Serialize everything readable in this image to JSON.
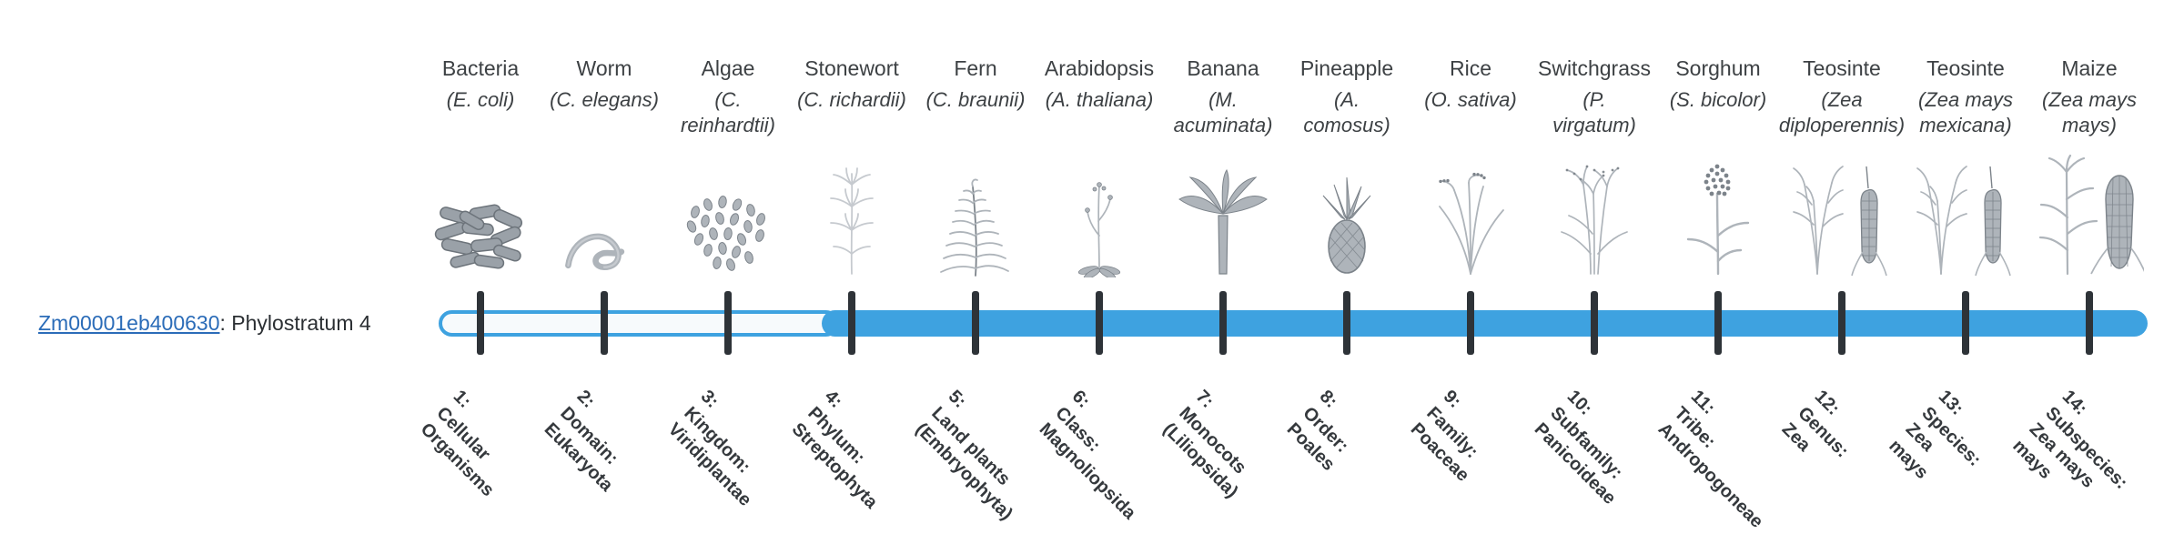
{
  "gene": {
    "id": "Zm00001eb400630",
    "suffix": ": Phylostratum 4",
    "phylostratum": 4
  },
  "colors": {
    "bar_fill": "#3ea2e0",
    "tick": "#2e3338",
    "link": "#2b6cb8",
    "text": "#3d4144",
    "label_text": "#35393d",
    "art_fill": "#aeb4ba",
    "art_stroke": "#7c838a",
    "art_light": "#c6cacf",
    "art_dark_fill": "#9aa1a8",
    "art_dark_stroke": "#6d747b"
  },
  "timeline": {
    "filled_from_stratum": 4,
    "total_strata": 14
  },
  "strata": [
    {
      "number": 1,
      "organism": "Bacteria",
      "scientific": "(E. coli)",
      "icon": "bacteria-illustration",
      "label": "1:\nCellular\nOrganisms"
    },
    {
      "number": 2,
      "organism": "Worm",
      "scientific": "(C. elegans)",
      "icon": "worm-illustration",
      "label": "2:\nDomain:\nEukaryota"
    },
    {
      "number": 3,
      "organism": "Algae",
      "scientific": "(C.\nreinhardtii)",
      "icon": "algae-illustration",
      "label": "3:\nKingdom:\nViridiplantae"
    },
    {
      "number": 4,
      "organism": "Stonewort",
      "scientific": "(C. richardii)",
      "icon": "stonewort-illustration",
      "label": "4:\nPhylum:\nStreptophyta"
    },
    {
      "number": 5,
      "organism": "Fern",
      "scientific": "(C. braunii)",
      "icon": "fern-illustration",
      "label": "5:\nLand plants\n(Embryophyta)"
    },
    {
      "number": 6,
      "organism": "Arabidopsis",
      "scientific": "(A. thaliana)",
      "icon": "arabidopsis-illustration",
      "label": "6:\nClass:\nMagnoliopsida"
    },
    {
      "number": 7,
      "organism": "Banana",
      "scientific": "(M.\nacuminata)",
      "icon": "banana-illustration",
      "label": "7:\nMonocots\n(Liliopsida)"
    },
    {
      "number": 8,
      "organism": "Pineapple",
      "scientific": "(A.\ncomosus)",
      "icon": "pineapple-illustration",
      "label": "8:\nOrder:\nPoales"
    },
    {
      "number": 9,
      "organism": "Rice",
      "scientific": "(O. sativa)",
      "icon": "rice-illustration",
      "label": "9:\nFamily:\nPoaceae"
    },
    {
      "number": 10,
      "organism": "Switchgrass",
      "scientific": "(P.\nvirgatum)",
      "icon": "switchgrass-illustration",
      "label": "10:\nSubfamily:\nPanicoideae"
    },
    {
      "number": 11,
      "organism": "Sorghum",
      "scientific": "(S. bicolor)",
      "icon": "sorghum-illustration",
      "label": "11:\nTribe:\nAndropogoneae"
    },
    {
      "number": 12,
      "organism": "Teosinte",
      "scientific": "(Zea\ndiploperennis)",
      "icon": "teosinte-illustration",
      "label": "12:\nGenus:\nZea"
    },
    {
      "number": 13,
      "organism": "Teosinte",
      "scientific": "(Zea mays\nmexicana)",
      "icon": "teosinte-illustration",
      "label": "13:\nSpecies:\nZea\nmays"
    },
    {
      "number": 14,
      "organism": "Maize",
      "scientific": "(Zea mays\nmays)",
      "icon": "maize-illustration",
      "label": "14:\nSubspecies:\nZea mays\nmays"
    }
  ]
}
